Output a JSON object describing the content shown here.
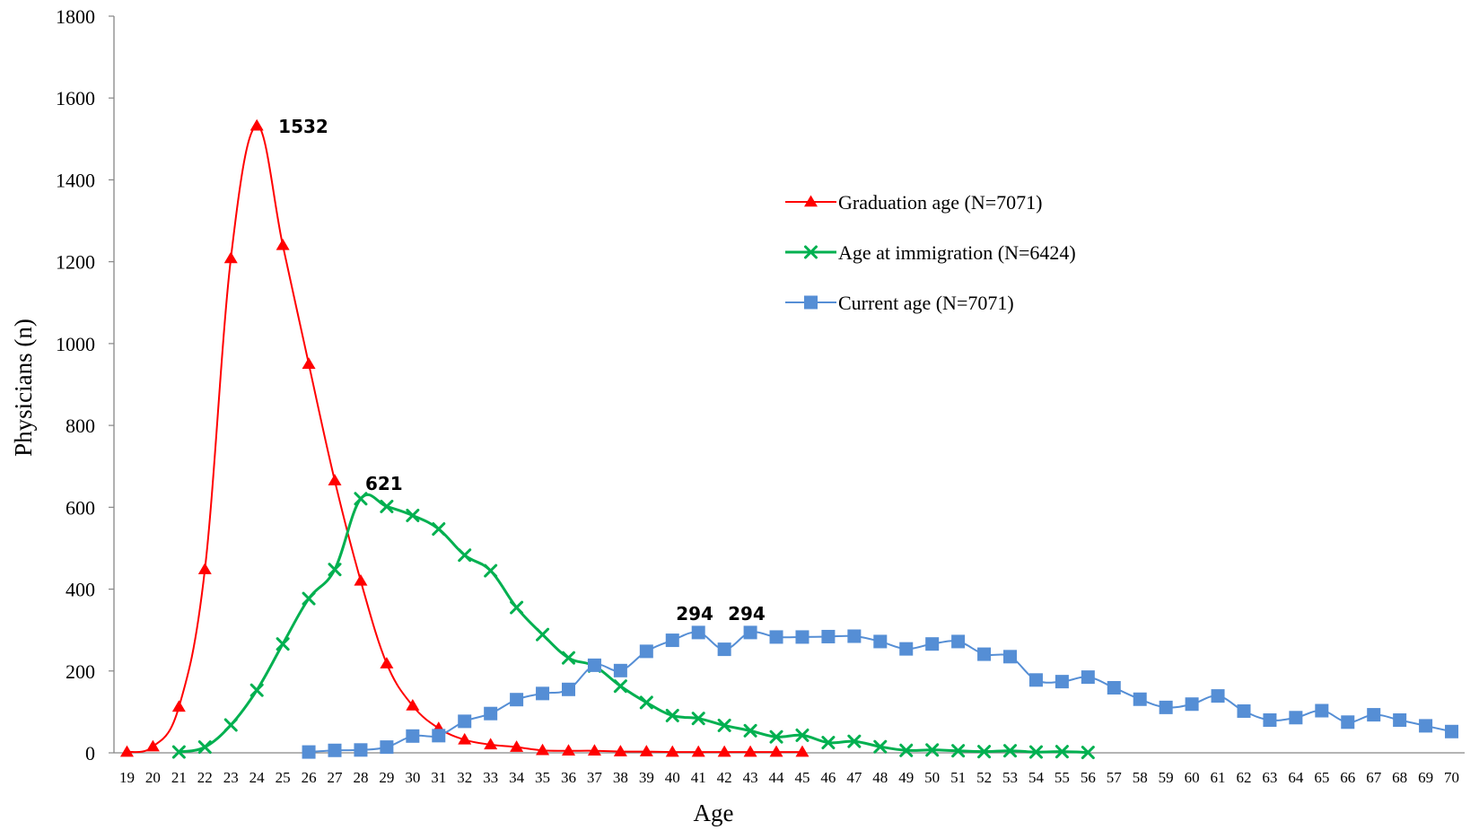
{
  "chart_data": {
    "type": "line",
    "xlabel": "Age",
    "ylabel": "Physicians (n)",
    "x": [
      19,
      20,
      21,
      22,
      23,
      24,
      25,
      26,
      27,
      28,
      29,
      30,
      31,
      32,
      33,
      34,
      35,
      36,
      37,
      38,
      39,
      40,
      41,
      42,
      43,
      44,
      45,
      46,
      47,
      48,
      49,
      50,
      51,
      52,
      53,
      54,
      55,
      56,
      57,
      58,
      59,
      60,
      61,
      62,
      63,
      64,
      65,
      66,
      67,
      68,
      69,
      70
    ],
    "ylim": [
      0,
      1800
    ],
    "yticks": [
      0,
      200,
      400,
      600,
      800,
      1000,
      1200,
      1400,
      1600,
      1800
    ],
    "grid": false,
    "legend_position": "right",
    "series": [
      {
        "name": "Graduation age (N=7071)",
        "color": "#ff0000",
        "marker": "triangle",
        "x": [
          19,
          20,
          21,
          22,
          23,
          24,
          25,
          26,
          27,
          28,
          29,
          30,
          31,
          32,
          33,
          34,
          35,
          36,
          37,
          38,
          39,
          40,
          41,
          42,
          43,
          44,
          45
        ],
        "values": [
          2,
          15,
          112,
          448,
          1208,
          1532,
          1240,
          950,
          665,
          420,
          218,
          115,
          60,
          32,
          20,
          14,
          6,
          5,
          5,
          3,
          3,
          2,
          2,
          2,
          2,
          2,
          2
        ]
      },
      {
        "name": "Age at immigration (N=6424)",
        "color": "#00b050",
        "marker": "x",
        "x": [
          21,
          22,
          23,
          24,
          25,
          26,
          27,
          28,
          29,
          30,
          31,
          32,
          33,
          34,
          35,
          36,
          37,
          38,
          39,
          40,
          41,
          42,
          43,
          44,
          45,
          46,
          47,
          48,
          49,
          50,
          51,
          52,
          53,
          54,
          55,
          56
        ],
        "values": [
          2,
          14,
          68,
          153,
          266,
          377,
          448,
          621,
          602,
          580,
          547,
          483,
          445,
          355,
          289,
          232,
          212,
          163,
          123,
          91,
          84,
          67,
          54,
          39,
          43,
          25,
          28,
          15,
          6,
          7,
          5,
          3,
          5,
          2,
          3,
          1
        ]
      },
      {
        "name": "Current age (N=7071)",
        "color": "#558ed5",
        "marker": "square",
        "x": [
          26,
          27,
          28,
          29,
          30,
          31,
          32,
          33,
          34,
          35,
          36,
          37,
          38,
          39,
          40,
          41,
          42,
          43,
          44,
          45,
          46,
          47,
          48,
          49,
          50,
          51,
          52,
          53,
          54,
          55,
          56,
          57,
          58,
          59,
          60,
          61,
          62,
          63,
          64,
          65,
          66,
          67,
          68,
          69,
          70
        ],
        "values": [
          2,
          6,
          7,
          14,
          41,
          42,
          77,
          96,
          130,
          145,
          155,
          214,
          201,
          248,
          275,
          294,
          253,
          294,
          283,
          283,
          284,
          285,
          272,
          254,
          266,
          272,
          241,
          235,
          178,
          174,
          185,
          159,
          131,
          111,
          119,
          139,
          102,
          80,
          86,
          103,
          75,
          93,
          80,
          66,
          52
        ]
      }
    ],
    "annotations": [
      {
        "text": "1532",
        "series": 0,
        "x": 24
      },
      {
        "text": "621",
        "series": 1,
        "x": 28
      },
      {
        "text": "294",
        "series": 2,
        "x": 41
      },
      {
        "text": "294",
        "series": 2,
        "x": 43
      }
    ]
  }
}
